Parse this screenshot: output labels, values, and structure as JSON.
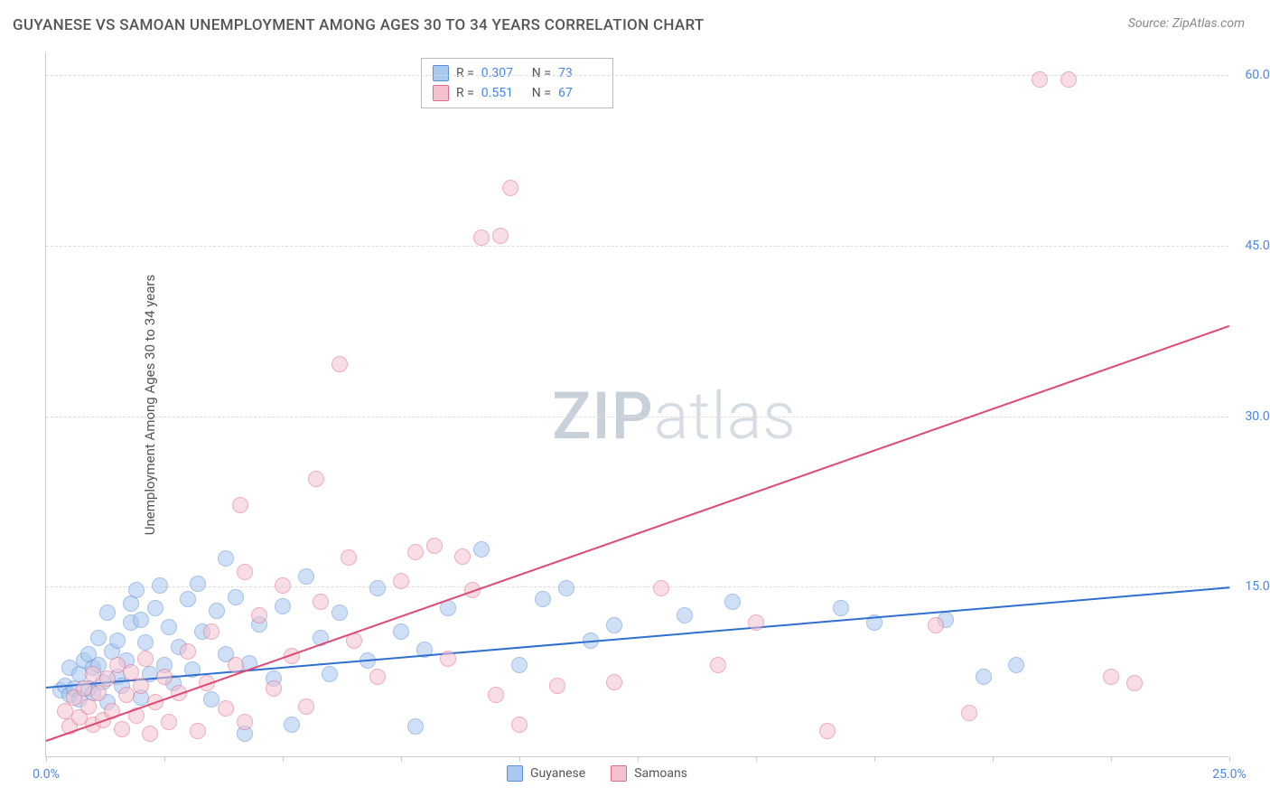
{
  "title": "GUYANESE VS SAMOAN UNEMPLOYMENT AMONG AGES 30 TO 34 YEARS CORRELATION CHART",
  "source_label": "Source: ZipAtlas.com",
  "ylabel": "Unemployment Among Ages 30 to 34 years",
  "watermark_bold": "ZIP",
  "watermark_light": "atlas",
  "chart": {
    "type": "scatter",
    "xlim": [
      0,
      25
    ],
    "ylim": [
      0,
      62
    ],
    "xticks": [
      0,
      2.5,
      5,
      7.5,
      10,
      12.5,
      15,
      17.5,
      20,
      22.5,
      25
    ],
    "xtick_labels": {
      "0": "0.0%",
      "25": "25.0%"
    },
    "yticks": [
      15,
      30,
      45,
      60
    ],
    "ytick_labels": [
      "15.0%",
      "30.0%",
      "45.0%",
      "60.0%"
    ],
    "grid_color": "#dddddd",
    "axis_color": "#cccccc",
    "background_color": "#ffffff",
    "marker_radius": 9,
    "marker_opacity": 0.55,
    "marker_stroke_width": 1.2,
    "series": [
      {
        "name": "Guyanese",
        "fill": "#a8c8ef",
        "stroke": "#5b8fd6",
        "r_value": "0.307",
        "n_value": "73",
        "trend": {
          "x1": 0,
          "y1": 6.2,
          "x2": 25,
          "y2": 15.0,
          "color": "#2f6fd0",
          "width": 2
        },
        "points": [
          [
            0.3,
            5.8
          ],
          [
            0.4,
            6.2
          ],
          [
            0.5,
            5.4
          ],
          [
            0.5,
            7.8
          ],
          [
            0.6,
            6.0
          ],
          [
            0.7,
            5.0
          ],
          [
            0.7,
            7.2
          ],
          [
            0.8,
            8.4
          ],
          [
            0.9,
            6.0
          ],
          [
            0.9,
            9.0
          ],
          [
            1.0,
            5.6
          ],
          [
            1.0,
            7.8
          ],
          [
            1.1,
            10.4
          ],
          [
            1.1,
            8.0
          ],
          [
            1.2,
            6.5
          ],
          [
            1.3,
            12.6
          ],
          [
            1.3,
            4.8
          ],
          [
            1.4,
            9.2
          ],
          [
            1.5,
            7.0
          ],
          [
            1.5,
            10.2
          ],
          [
            1.6,
            6.2
          ],
          [
            1.7,
            8.4
          ],
          [
            1.8,
            13.4
          ],
          [
            1.8,
            11.8
          ],
          [
            1.9,
            14.6
          ],
          [
            2.0,
            12.0
          ],
          [
            2.0,
            5.2
          ],
          [
            2.1,
            10.0
          ],
          [
            2.2,
            7.2
          ],
          [
            2.3,
            13.0
          ],
          [
            2.4,
            15.0
          ],
          [
            2.5,
            8.0
          ],
          [
            2.6,
            11.4
          ],
          [
            2.7,
            6.4
          ],
          [
            2.8,
            9.6
          ],
          [
            3.0,
            13.8
          ],
          [
            3.1,
            7.6
          ],
          [
            3.2,
            15.2
          ],
          [
            3.3,
            11.0
          ],
          [
            3.5,
            5.0
          ],
          [
            3.6,
            12.8
          ],
          [
            3.8,
            9.0
          ],
          [
            3.8,
            17.4
          ],
          [
            4.0,
            14.0
          ],
          [
            4.2,
            2.0
          ],
          [
            4.3,
            8.2
          ],
          [
            4.5,
            11.6
          ],
          [
            4.8,
            6.8
          ],
          [
            5.0,
            13.2
          ],
          [
            5.2,
            2.8
          ],
          [
            5.5,
            15.8
          ],
          [
            5.8,
            10.4
          ],
          [
            6.0,
            7.2
          ],
          [
            6.2,
            12.6
          ],
          [
            6.8,
            8.4
          ],
          [
            7.0,
            14.8
          ],
          [
            7.5,
            11.0
          ],
          [
            7.8,
            2.6
          ],
          [
            8.0,
            9.4
          ],
          [
            8.5,
            13.0
          ],
          [
            9.2,
            18.2
          ],
          [
            10.0,
            8.0
          ],
          [
            10.5,
            13.8
          ],
          [
            11.0,
            14.8
          ],
          [
            11.5,
            10.2
          ],
          [
            12.0,
            11.5
          ],
          [
            13.5,
            12.4
          ],
          [
            14.5,
            13.6
          ],
          [
            16.8,
            13.0
          ],
          [
            17.5,
            11.8
          ],
          [
            19.0,
            12.0
          ],
          [
            19.8,
            7.0
          ],
          [
            20.5,
            8.0
          ]
        ]
      },
      {
        "name": "Samoans",
        "fill": "#f4c2cf",
        "stroke": "#e06a8b",
        "r_value": "0.551",
        "n_value": "67",
        "trend": {
          "x1": 0,
          "y1": 1.5,
          "x2": 25,
          "y2": 38.0,
          "color": "#e04a72",
          "width": 2
        },
        "points": [
          [
            0.4,
            4.0
          ],
          [
            0.5,
            2.6
          ],
          [
            0.6,
            5.2
          ],
          [
            0.7,
            3.4
          ],
          [
            0.8,
            6.0
          ],
          [
            0.9,
            4.4
          ],
          [
            1.0,
            7.2
          ],
          [
            1.0,
            2.8
          ],
          [
            1.1,
            5.6
          ],
          [
            1.2,
            3.2
          ],
          [
            1.3,
            6.8
          ],
          [
            1.4,
            4.0
          ],
          [
            1.5,
            8.0
          ],
          [
            1.6,
            2.4
          ],
          [
            1.7,
            5.4
          ],
          [
            1.8,
            7.4
          ],
          [
            1.9,
            3.6
          ],
          [
            2.0,
            6.2
          ],
          [
            2.1,
            8.6
          ],
          [
            2.2,
            2.0
          ],
          [
            2.3,
            4.8
          ],
          [
            2.5,
            7.0
          ],
          [
            2.6,
            3.0
          ],
          [
            2.8,
            5.6
          ],
          [
            3.0,
            9.2
          ],
          [
            3.2,
            2.2
          ],
          [
            3.4,
            6.4
          ],
          [
            3.5,
            11.0
          ],
          [
            3.8,
            4.2
          ],
          [
            4.0,
            8.0
          ],
          [
            4.1,
            22.1
          ],
          [
            4.2,
            16.2
          ],
          [
            4.2,
            3.0
          ],
          [
            4.5,
            12.4
          ],
          [
            4.8,
            6.0
          ],
          [
            5.0,
            15.0
          ],
          [
            5.2,
            8.8
          ],
          [
            5.5,
            4.4
          ],
          [
            5.7,
            24.4
          ],
          [
            5.8,
            13.6
          ],
          [
            6.2,
            34.5
          ],
          [
            6.4,
            17.5
          ],
          [
            6.5,
            10.2
          ],
          [
            7.0,
            7.0
          ],
          [
            7.5,
            15.4
          ],
          [
            7.8,
            18.0
          ],
          [
            8.2,
            18.5
          ],
          [
            8.5,
            8.6
          ],
          [
            8.8,
            17.6
          ],
          [
            9.0,
            14.6
          ],
          [
            9.5,
            5.4
          ],
          [
            9.2,
            45.6
          ],
          [
            9.6,
            45.8
          ],
          [
            9.8,
            50.0
          ],
          [
            10.0,
            2.8
          ],
          [
            10.8,
            6.2
          ],
          [
            12.0,
            6.5
          ],
          [
            13.0,
            14.8
          ],
          [
            14.2,
            8.0
          ],
          [
            15.0,
            11.8
          ],
          [
            16.5,
            2.2
          ],
          [
            18.8,
            11.5
          ],
          [
            19.5,
            3.8
          ],
          [
            21.0,
            59.5
          ],
          [
            21.6,
            59.5
          ],
          [
            22.5,
            7.0
          ],
          [
            23.0,
            6.4
          ]
        ]
      }
    ]
  },
  "legend_top": {
    "r_label": "R =",
    "n_label": "N ="
  },
  "legend_bottom": [
    {
      "label": "Guyanese",
      "fill": "#a8c8ef",
      "stroke": "#5b8fd6"
    },
    {
      "label": "Samoans",
      "fill": "#f4c2cf",
      "stroke": "#e06a8b"
    }
  ],
  "colors": {
    "title": "#555555",
    "source": "#888888",
    "tick_label": "#4a86e8"
  }
}
